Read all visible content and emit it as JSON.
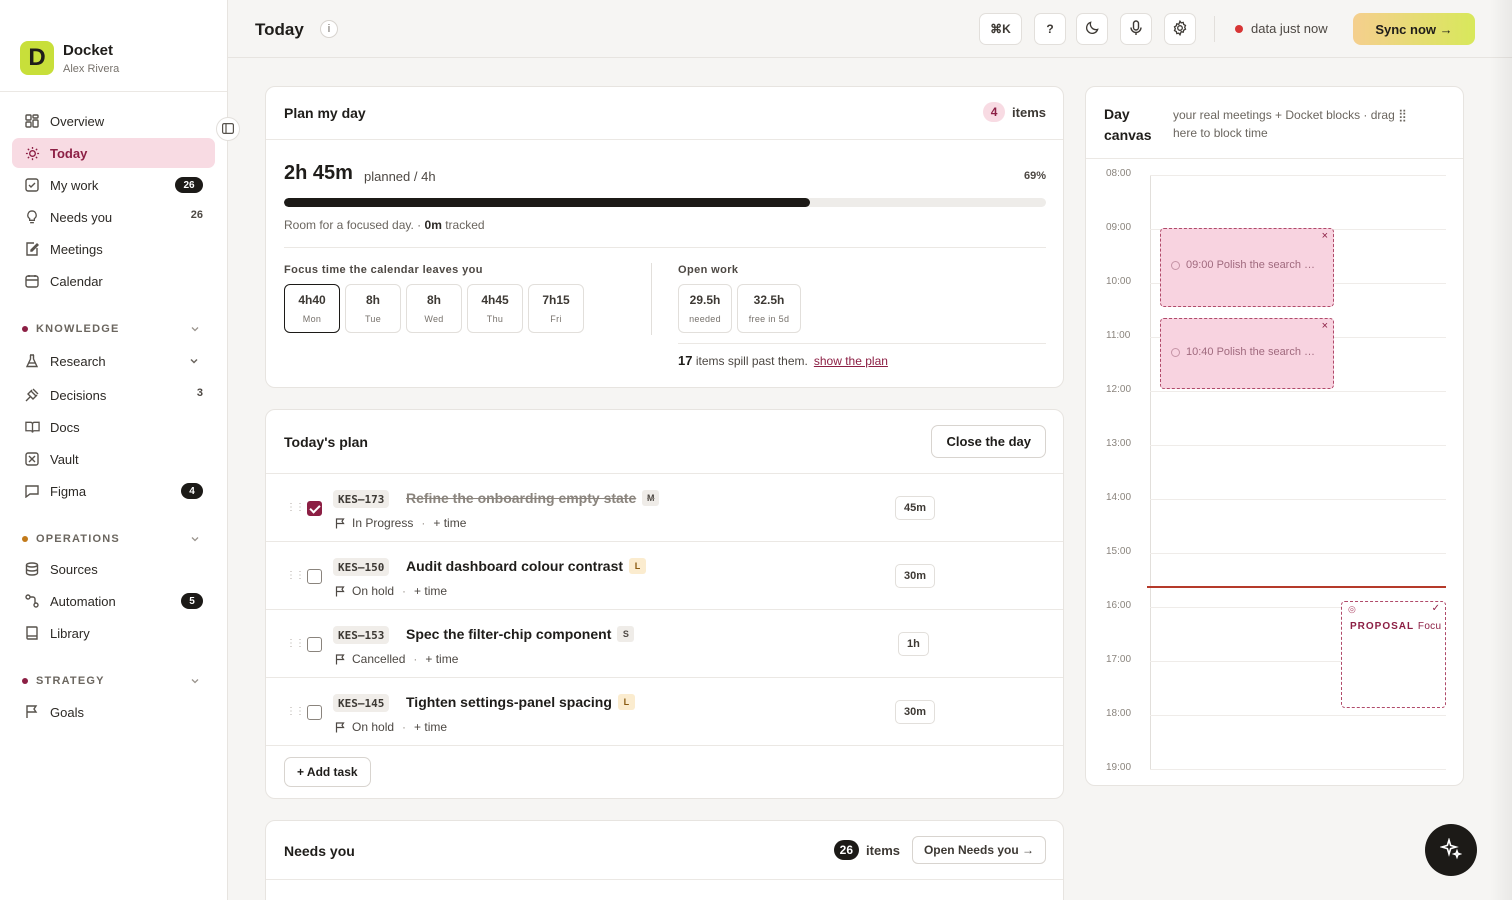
{
  "brand": {
    "logo_letter": "D",
    "name": "Docket",
    "user": "Alex Rivera"
  },
  "nav": {
    "overview": "Overview",
    "today": "Today",
    "my_work": "My work",
    "my_work_count": "26",
    "needs_you": "Needs you",
    "needs_you_count": "26",
    "meetings": "Meetings",
    "calendar": "Calendar"
  },
  "sections": {
    "knowledge": {
      "label": "KNOWLEDGE",
      "color": "#8c1f44"
    },
    "operations": {
      "label": "OPERATIONS",
      "color": "#c27a1a"
    },
    "strategy": {
      "label": "STRATEGY",
      "color": "#8c1f44"
    }
  },
  "knowledge_items": {
    "research": "Research",
    "decisions": "Decisions",
    "decisions_count": "3",
    "docs": "Docs",
    "vault": "Vault",
    "figma": "Figma",
    "figma_count": "4"
  },
  "operations_items": {
    "sources": "Sources",
    "automation": "Automation",
    "automation_count": "5",
    "library": "Library"
  },
  "strategy_items": {
    "goals": "Goals"
  },
  "header": {
    "title": "Today",
    "info": "i",
    "shortcut": "⌘K",
    "help": "?",
    "status": "data just now",
    "sync": "Sync now →"
  },
  "plan": {
    "title": "Plan my day",
    "count": "4",
    "count_label": "items",
    "planned": "2h 45m",
    "planned_sub": "planned / 4h",
    "percent_label": "69%",
    "progress": 0.69,
    "room_text": "Room for a focused day. ·",
    "tracked_value": "0m",
    "tracked_label": "tracked",
    "focus_label": "Focus time the calendar leaves you",
    "days": [
      {
        "value": "4h40",
        "day": "Mon"
      },
      {
        "value": "8h",
        "day": "Tue"
      },
      {
        "value": "8h",
        "day": "Wed"
      },
      {
        "value": "4h45",
        "day": "Thu"
      },
      {
        "value": "7h15",
        "day": "Fri"
      }
    ],
    "open_label": "Open work",
    "open": [
      {
        "value": "29.5h",
        "label": "needed"
      },
      {
        "value": "32.5h",
        "label": "free in 5d"
      }
    ],
    "spill_count": "17",
    "spill_text": "items spill past them.",
    "spill_link": "show the plan"
  },
  "todays_plan": {
    "title": "Today's plan",
    "close_btn": "Close the day",
    "add_btn": "+ Add task",
    "tasks": [
      {
        "key": "KES–173",
        "title": "Refine the onboarding empty state",
        "size": "M",
        "status": "In Progress",
        "add_time": "+ time",
        "duration": "45m",
        "done": true
      },
      {
        "key": "KES–150",
        "title": "Audit dashboard colour contrast",
        "size": "L",
        "status": "On hold",
        "add_time": "+ time",
        "duration": "30m",
        "done": false
      },
      {
        "key": "KES–153",
        "title": "Spec the filter-chip component",
        "size": "S",
        "status": "Cancelled",
        "add_time": "+ time",
        "duration": "1h",
        "done": false
      },
      {
        "key": "KES–145",
        "title": "Tighten settings-panel spacing",
        "size": "L",
        "status": "On hold",
        "add_time": "+ time",
        "duration": "30m",
        "done": false
      }
    ]
  },
  "needs_you": {
    "title": "Needs you",
    "count": "26",
    "count_label": "items",
    "open_btn": "Open Needs you →"
  },
  "canvas": {
    "title": "Day canvas",
    "subtitle": "your real meetings + Docket blocks · drag ⣿ here to block time",
    "hours": [
      "08:00",
      "09:00",
      "10:00",
      "11:00",
      "12:00",
      "13:00",
      "14:00",
      "15:00",
      "16:00",
      "17:00",
      "18:00",
      "19:00"
    ],
    "blocks": [
      {
        "label": "09:00 Polish the search …",
        "close": "×"
      },
      {
        "label": "10:40 Polish the search …",
        "close": "×"
      }
    ],
    "proposal_tag": "PROPOSAL",
    "proposal_text": "Focu"
  }
}
